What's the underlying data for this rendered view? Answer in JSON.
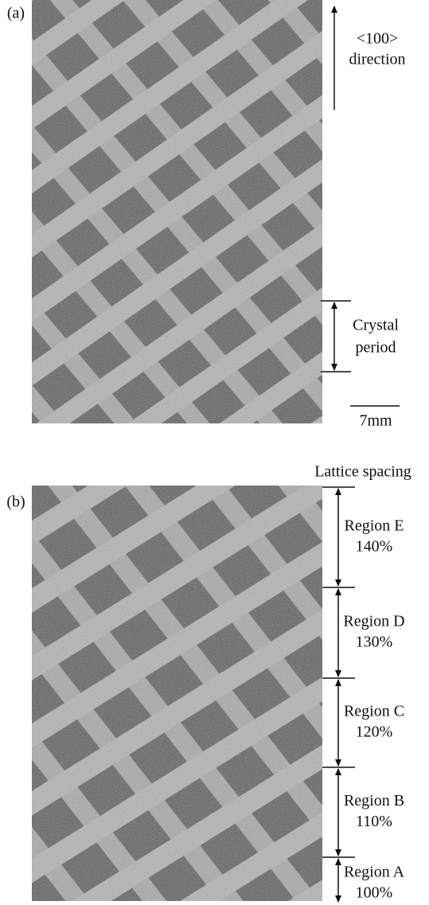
{
  "panel_a": {
    "label": "(a)",
    "direction": [
      "<100>",
      "direction"
    ],
    "period": [
      "Crystal",
      "period"
    ],
    "scale": "7mm"
  },
  "panel_b": {
    "label": "(b)",
    "heading": "Lattice spacing",
    "regions": [
      {
        "name": "Region E",
        "spacing": "140%"
      },
      {
        "name": "Region D",
        "spacing": "130%"
      },
      {
        "name": "Region C",
        "spacing": "120%"
      },
      {
        "name": "Region B",
        "spacing": "110%"
      },
      {
        "name": "Region A",
        "spacing": "100%"
      }
    ]
  }
}
